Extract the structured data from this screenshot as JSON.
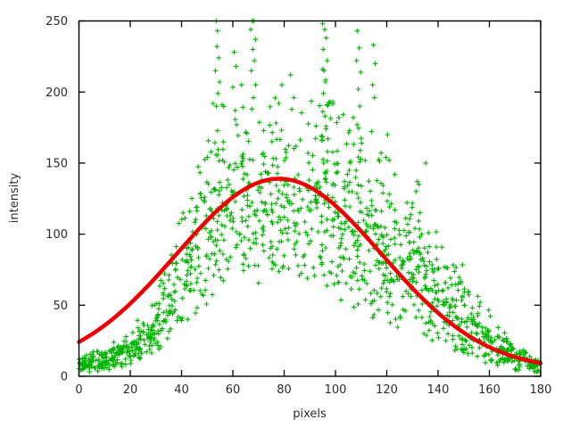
{
  "chart_data": {
    "type": "scatter",
    "title": "",
    "xlabel": "pixels",
    "ylabel": "intensity",
    "x_axis": {
      "min": 0,
      "max": 180,
      "ticks": [
        0,
        20,
        40,
        60,
        80,
        100,
        120,
        140,
        160,
        180
      ]
    },
    "y_axis": {
      "min": 0,
      "max": 250,
      "ticks": [
        0,
        50,
        100,
        150,
        200,
        250
      ]
    },
    "grid": false,
    "legend": "none",
    "series": [
      {
        "name": "measured-intensity-scatter",
        "type": "scatter",
        "marker": "plus",
        "color": "#00b400",
        "distribution": {
          "seed": 7,
          "n": 1400,
          "x_range": [
            0,
            180
          ],
          "envelope_x": [
            0,
            10,
            20,
            30,
            40,
            45,
            50,
            55,
            60,
            65,
            70,
            75,
            80,
            85,
            90,
            95,
            100,
            105,
            110,
            115,
            120,
            130,
            140,
            150,
            160,
            170,
            180
          ],
          "envelope_low": [
            2,
            4,
            8,
            16,
            28,
            36,
            45,
            55,
            60,
            62,
            62,
            62,
            65,
            65,
            62,
            60,
            55,
            50,
            45,
            40,
            34,
            27,
            21,
            14,
            8,
            3,
            2
          ],
          "envelope_high": [
            14,
            22,
            36,
            60,
            120,
            150,
            185,
            205,
            215,
            215,
            210,
            200,
            205,
            200,
            205,
            230,
            215,
            190,
            185,
            175,
            165,
            140,
            108,
            80,
            48,
            26,
            14
          ],
          "vertical_bias": 1.25
        },
        "outlier_points": [
          [
            53.5,
            250
          ],
          [
            54.0,
            243
          ],
          [
            53.8,
            232
          ],
          [
            54.5,
            224
          ],
          [
            53.2,
            215
          ],
          [
            54.8,
            207
          ],
          [
            54.2,
            199
          ],
          [
            53.6,
            190
          ],
          [
            67.5,
            250
          ],
          [
            68.2,
            250
          ],
          [
            67.0,
            244
          ],
          [
            68.8,
            237
          ],
          [
            67.8,
            230
          ],
          [
            68.4,
            222
          ],
          [
            67.2,
            215
          ],
          [
            68.9,
            205
          ],
          [
            68.0,
            196
          ],
          [
            67.4,
            188
          ],
          [
            60.5,
            228
          ],
          [
            61.2,
            218
          ],
          [
            63.4,
            205
          ],
          [
            95.0,
            248
          ],
          [
            95.8,
            244
          ],
          [
            96.4,
            238
          ],
          [
            95.2,
            230
          ],
          [
            96.8,
            222
          ],
          [
            95.5,
            215
          ],
          [
            96.1,
            207
          ],
          [
            95.3,
            199
          ],
          [
            96.6,
            191
          ],
          [
            95.9,
            183
          ],
          [
            96.3,
            174
          ],
          [
            95.1,
            166
          ],
          [
            96.9,
            158
          ],
          [
            108.5,
            243
          ],
          [
            109.3,
            231
          ],
          [
            108.2,
            222
          ],
          [
            109.8,
            214
          ],
          [
            108.9,
            202
          ],
          [
            109.5,
            190
          ],
          [
            108.4,
            177
          ],
          [
            110.2,
            164
          ],
          [
            114.8,
            233
          ],
          [
            115.5,
            220
          ],
          [
            114.5,
            205
          ],
          [
            115.2,
            196
          ],
          [
            120.3,
            170
          ],
          [
            119.6,
            154
          ],
          [
            120.9,
            152
          ],
          [
            123.1,
            142
          ],
          [
            82.5,
            212
          ],
          [
            79.1,
            205
          ],
          [
            83.8,
            196
          ],
          [
            77.9,
            192
          ],
          [
            131.9,
            137
          ],
          [
            132.6,
            135
          ],
          [
            131.4,
            130
          ],
          [
            135.2,
            150
          ]
        ]
      },
      {
        "name": "gaussian-fit-curve",
        "type": "line",
        "color": "#ee0000",
        "line_width": 4.5,
        "gaussian": {
          "amplitude": 135,
          "mean": 78,
          "sigma": 40,
          "baseline": 4
        },
        "x_range": [
          0,
          180
        ],
        "peak_value": 139,
        "value_at_x0": 24,
        "value_at_x180": 9
      }
    ]
  },
  "colors": {
    "background": "#ffffff",
    "axis": "#000000",
    "text": "#2b2b2b",
    "scatter": "#00b400",
    "fit": "#ee0000"
  }
}
